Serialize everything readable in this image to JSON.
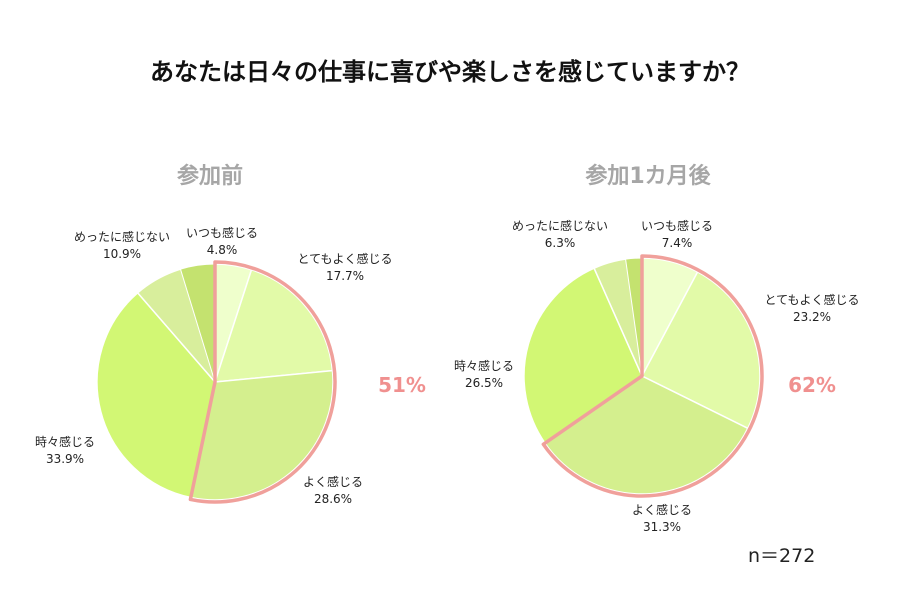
{
  "title": "あなたは日々の仕事に喜びや楽しさを感じていますか？",
  "note": "n＝272",
  "chart_data": [
    {
      "type": "pie",
      "title": "参加前",
      "categories": [
        "いつも感じる",
        "とてもよく感じる",
        "よく感じる",
        "時々感じる",
        "めったに感じない"
      ],
      "values": [
        4.8,
        17.7,
        28.6,
        33.9,
        10.9
      ],
      "value_labels": [
        "4.8%",
        "17.7%",
        "28.6%",
        "33.9%",
        "10.9%"
      ],
      "colors": [
        "#efffcc",
        "#e2faa8",
        "#d4ef8e",
        "#d2f774",
        "#d8ee9c"
      ],
      "highlight_total": "51%",
      "highlight_color": "#f0a09b"
    },
    {
      "type": "pie",
      "title": "参加1カ月後",
      "categories": [
        "いつも感じる",
        "とてもよく感じる",
        "よく感じる",
        "時々感じる",
        "めったに感じない"
      ],
      "values": [
        7.4,
        23.2,
        31.3,
        26.5,
        6.3
      ],
      "value_labels": [
        "7.4%",
        "23.2%",
        "31.3%",
        "26.5%",
        "6.3%"
      ],
      "colors": [
        "#efffcc",
        "#e2faa8",
        "#d4ef8e",
        "#d2f774",
        "#d8ee9c"
      ],
      "highlight_total": "62%",
      "highlight_color": "#f0a09b"
    }
  ]
}
